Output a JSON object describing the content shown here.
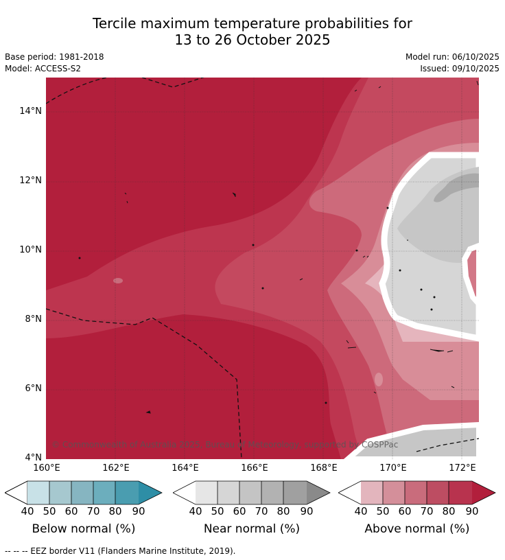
{
  "title_line1": "Tercile maximum temperature probabilities for",
  "title_line2": "13 to 26 October 2025",
  "base_period": "Base period: 1981-2018",
  "model": "Model: ACCESS-S2",
  "model_run": "Model run: 06/10/2025",
  "issued": "Issued: 09/10/2025",
  "map": {
    "lat_labels": [
      "14°N",
      "12°N",
      "10°N",
      "8°N",
      "6°N",
      "4°N"
    ],
    "lon_labels": [
      "160°E",
      "162°E",
      "164°E",
      "166°E",
      "168°E",
      "170°E",
      "172°E"
    ],
    "copyright": "© Commonwealth of Australia 2025, Bureau of Meteorology, supported by COSPPac"
  },
  "legends": [
    {
      "title": "Below normal (%)",
      "ticks": [
        "40",
        "50",
        "60",
        "70",
        "80",
        "90"
      ],
      "colors": [
        "#ffffff",
        "#c8e1e7",
        "#a6c8cf",
        "#86b5c1",
        "#6caebd",
        "#4a9db0",
        "#2e8ea6"
      ]
    },
    {
      "title": "Near normal (%)",
      "ticks": [
        "40",
        "50",
        "60",
        "70",
        "80",
        "90"
      ],
      "colors": [
        "#ffffff",
        "#e6e6e6",
        "#d6d6d6",
        "#c4c4c4",
        "#b2b2b2",
        "#a0a0a0",
        "#8a8a8a"
      ]
    },
    {
      "title": "Above normal (%)",
      "ticks": [
        "40",
        "50",
        "60",
        "70",
        "80",
        "90"
      ],
      "colors": [
        "#ffffff",
        "#e3b5bd",
        "#d48f9a",
        "#c96c7c",
        "#bd4d62",
        "#b8334e",
        "#b21f3c"
      ]
    }
  ],
  "footer": "-- -- -- EEZ border V11 (Flanders Marine Institute, 2019)."
}
